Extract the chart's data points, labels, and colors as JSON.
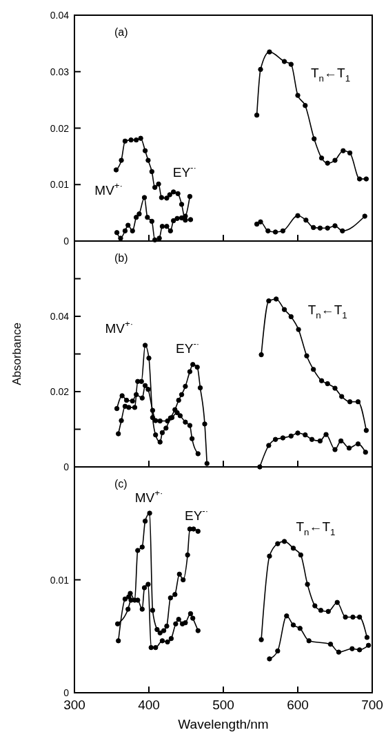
{
  "chart_data": [
    {
      "type": "line",
      "title": "(a)",
      "xlim": [
        300,
        700
      ],
      "xticks": [
        300,
        400,
        500,
        600,
        700
      ],
      "ylim": [
        0,
        0.04
      ],
      "yticks": [
        0,
        0.01,
        0.02,
        0.03,
        0.04
      ],
      "tick_labels": "y",
      "marker": "circle",
      "line_style": "solid",
      "annotations": [
        "MV$^{+·}$",
        "EY$^{-·}$",
        "T$_{n}$←T$_{1}$"
      ],
      "series": [
        {
          "color": "#000000",
          "x": [
            356,
            363,
            368,
            376,
            383,
            389,
            395,
            399,
            404,
            408,
            413,
            417,
            424,
            428,
            433,
            439,
            444,
            449,
            456
          ],
          "values": [
            0.0126,
            0.0143,
            0.0177,
            0.0179,
            0.0179,
            0.0182,
            0.016,
            0.0143,
            0.0123,
            0.0095,
            0.0101,
            0.0077,
            0.0076,
            0.0082,
            0.0087,
            0.0084,
            0.0065,
            0.0037,
            0.0038
          ]
        },
        {
          "color": "#000000",
          "x": [
            357,
            362,
            368,
            372,
            378,
            383,
            387,
            394,
            398,
            404,
            408,
            414,
            418,
            424,
            429,
            433,
            438,
            444,
            449,
            455
          ],
          "values": [
            0.0015,
            0.0005,
            0.0018,
            0.0028,
            0.0018,
            0.0042,
            0.0048,
            0.0077,
            0.0042,
            0.0035,
            0.0002,
            0.0005,
            0.0026,
            0.0026,
            0.0018,
            0.0036,
            0.004,
            0.0041,
            0.0044,
            0.0079
          ]
        },
        {
          "color": "#000000",
          "x": [
            545,
            550,
            562,
            582,
            591,
            600,
            610,
            622,
            632,
            640,
            650,
            661,
            670,
            683,
            692
          ],
          "values": [
            0.0223,
            0.0304,
            0.0335,
            0.0318,
            0.0313,
            0.0258,
            0.024,
            0.0181,
            0.0147,
            0.0138,
            0.0143,
            0.016,
            0.0156,
            0.011,
            0.011
          ]
        },
        {
          "color": "#000000",
          "x": [
            545,
            550,
            560,
            570,
            580,
            600,
            611,
            621,
            630,
            640,
            650,
            660,
            690
          ],
          "values": [
            0.003,
            0.0034,
            0.0018,
            0.0016,
            0.0018,
            0.0045,
            0.0037,
            0.0024,
            0.0023,
            0.0023,
            0.0027,
            0.0018,
            0.0044
          ]
        }
      ]
    },
    {
      "type": "line",
      "title": "(b)",
      "ylabel": "Absorbance",
      "xlim": [
        300,
        700
      ],
      "xticks": [
        300,
        400,
        500,
        600,
        700
      ],
      "ylim": [
        0,
        0.06
      ],
      "yticks": [
        0,
        {
          "value": 0.01,
          "label": null
        },
        0.02,
        {
          "value": 0.03,
          "label": null
        },
        0.04,
        {
          "value": 0.05,
          "label": null
        }
      ],
      "tick_labels": "y",
      "marker": "circle",
      "line_style": "solid",
      "annotations": [
        "MV$^{+·}$",
        "EY$^{-·}$",
        "T$_{n}$←T$_{1}$"
      ],
      "series": [
        {
          "color": "#000000",
          "x": [
            357,
            364,
            370,
            378,
            383,
            391,
            395,
            399,
            405,
            409,
            415,
            425,
            431,
            438,
            442,
            449,
            455,
            458,
            466
          ],
          "values": [
            0.0155,
            0.0189,
            0.0177,
            0.0175,
            0.0192,
            0.0183,
            0.0216,
            0.0206,
            0.015,
            0.0123,
            0.0122,
            0.0122,
            0.0131,
            0.0144,
            0.0136,
            0.0119,
            0.011,
            0.0075,
            0.0035
          ]
        },
        {
          "color": "#000000",
          "x": [
            359,
            363,
            368,
            373,
            381,
            385,
            390,
            395,
            400,
            405,
            409,
            415,
            418,
            423,
            429,
            435,
            440,
            444,
            449,
            455,
            459,
            465,
            469,
            475,
            478
          ],
          "values": [
            0.0088,
            0.0123,
            0.0161,
            0.0158,
            0.0158,
            0.0227,
            0.0227,
            0.0323,
            0.0289,
            0.0131,
            0.0085,
            0.0066,
            0.0091,
            0.0103,
            0.013,
            0.0152,
            0.0177,
            0.0192,
            0.0214,
            0.0253,
            0.0272,
            0.0265,
            0.021,
            0.0114,
            0.0009
          ]
        },
        {
          "color": "#000000",
          "x": [
            551,
            561,
            571,
            582,
            591,
            601,
            612,
            621,
            632,
            640,
            650,
            659,
            670,
            681,
            692
          ],
          "values": [
            0.0298,
            0.0441,
            0.0446,
            0.0418,
            0.0399,
            0.0365,
            0.0295,
            0.0259,
            0.0229,
            0.0221,
            0.0209,
            0.0187,
            0.0173,
            0.0173,
            0.0097
          ]
        },
        {
          "color": "#000000",
          "x": [
            549,
            561,
            570,
            580,
            591,
            600,
            610,
            619,
            630,
            638,
            650,
            658,
            669,
            681,
            691
          ],
          "values": [
            0.0,
            0.0057,
            0.0073,
            0.0077,
            0.0082,
            0.009,
            0.0085,
            0.0073,
            0.0069,
            0.0086,
            0.0046,
            0.0069,
            0.005,
            0.0061,
            0.0039
          ]
        }
      ]
    },
    {
      "type": "line",
      "title": "(c)",
      "xlabel": "Wavelength/nm",
      "xlim": [
        300,
        700
      ],
      "xticks": [
        300,
        400,
        500,
        600,
        700
      ],
      "ylim": [
        0,
        0.02
      ],
      "yticks": [
        0,
        0.01
      ],
      "marker": "circle",
      "line_style": "solid",
      "annotations": [
        "MV$^{+·}$",
        "EY$^{-·}$",
        "T$_{n}$←T$_{1}$"
      ],
      "series": [
        {
          "color": "#000000",
          "x": [
            358,
            372,
            376,
            385,
            391,
            394,
            399,
            403,
            409,
            418,
            425,
            430,
            436,
            440,
            445,
            449,
            456,
            459,
            466
          ],
          "values": [
            0.0061,
            0.0074,
            0.0082,
            0.0082,
            0.0074,
            0.0093,
            0.0096,
            0.004,
            0.004,
            0.0046,
            0.0045,
            0.0048,
            0.0061,
            0.0065,
            0.0061,
            0.0062,
            0.007,
            0.0066,
            0.0055
          ]
        },
        {
          "color": "#000000",
          "x": [
            359,
            368,
            373,
            375,
            381,
            385,
            391,
            395,
            401,
            405,
            411,
            415,
            420,
            424,
            429,
            435,
            441,
            446,
            452,
            455,
            460,
            466
          ],
          "values": [
            0.0046,
            0.0083,
            0.0085,
            0.0088,
            0.0082,
            0.0126,
            0.0129,
            0.0152,
            0.0159,
            0.0073,
            0.0056,
            0.0053,
            0.0055,
            0.0059,
            0.0084,
            0.0087,
            0.0105,
            0.01,
            0.0122,
            0.0145,
            0.0145,
            0.0143
          ]
        },
        {
          "color": "#000000",
          "x": [
            551,
            562,
            573,
            582,
            594,
            604,
            613,
            623,
            631,
            641,
            653,
            664,
            674,
            683,
            693
          ],
          "values": [
            0.0047,
            0.0121,
            0.0132,
            0.0134,
            0.0128,
            0.0122,
            0.0096,
            0.0077,
            0.0073,
            0.0072,
            0.008,
            0.0067,
            0.0067,
            0.0067,
            0.0049
          ]
        },
        {
          "color": "#000000",
          "x": [
            562,
            573,
            585,
            594,
            603,
            615,
            644,
            655,
            673,
            683,
            695
          ],
          "values": [
            0.003,
            0.0037,
            0.0068,
            0.006,
            0.0057,
            0.0046,
            0.0043,
            0.0036,
            0.0039,
            0.0038,
            0.0042
          ]
        }
      ]
    }
  ]
}
